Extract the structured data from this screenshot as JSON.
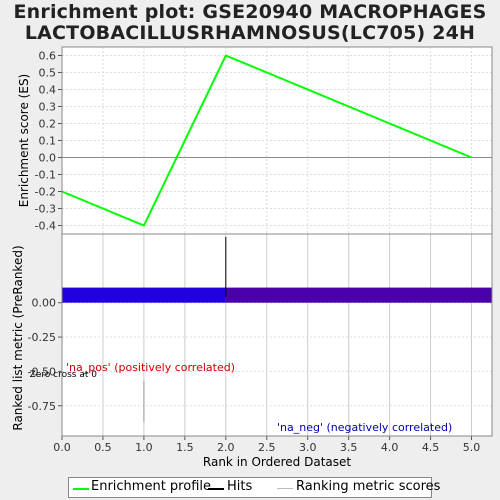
{
  "title": {
    "line1": "Enrichment plot: GSE20940 MACROPHAGES",
    "line2": "LACTOBACILLUSRHAMNOSUS(LC705) 24H"
  },
  "colors": {
    "enrichment_line": "#00ff00",
    "hits": "#000000",
    "pos_label": "#cc0000",
    "neg_label": "#0000aa",
    "bar_pos": "#2000dd",
    "bar_neg": "#4a00aa",
    "grid": "#dddddd"
  },
  "chart_data": {
    "type": "line",
    "x_axis": {
      "label": "Rank in Ordered Dataset",
      "range": [
        0,
        5.25
      ],
      "ticks": [
        "0.0",
        "0.5",
        "1.0",
        "1.5",
        "2.0",
        "2.5",
        "3.0",
        "3.5",
        "4.0",
        "4.5",
        "5.0"
      ]
    },
    "top_panel": {
      "ylabel": "Enrichment score (ES)",
      "ylim": [
        -0.45,
        0.65
      ],
      "yticks": [
        "0.6",
        "0.5",
        "0.4",
        "0.3",
        "0.2",
        "0.1",
        "0.0",
        "-0.1",
        "-0.2",
        "-0.3",
        "-0.4"
      ],
      "series": [
        {
          "name": "Enrichment profile",
          "x": [
            0,
            1,
            2,
            5
          ],
          "y": [
            -0.2,
            -0.4,
            0.6,
            0.0
          ]
        }
      ],
      "hits": [
        2
      ]
    },
    "bottom_panel": {
      "ylabel": "Ranked list metric (PreRanked)",
      "ylim": [
        -0.97,
        0.5
      ],
      "yticks": [
        "0.00",
        "-0.25",
        "-0.50",
        "-0.75"
      ],
      "bar_top": 0.11,
      "bar_neg_start_x": 2,
      "zero_cross_label": "Zero cross at 0",
      "pos_label": "'na_pos' (positively correlated)",
      "neg_label": "'na_neg' (negatively correlated)"
    },
    "grid": true,
    "legend": {
      "placement": "bottom",
      "items": [
        "Enrichment profile",
        "Hits",
        "Ranking metric scores"
      ]
    }
  }
}
